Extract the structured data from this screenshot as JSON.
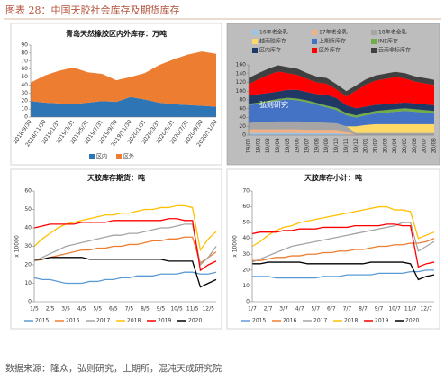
{
  "figure_title": "图表 28：中国天胶社会库存及期货库存",
  "source": "数据来源：隆众，弘则研究，上期所，混沌天成研究院",
  "chart_data": [
    {
      "type": "area",
      "title": "青岛天然橡胶区内外库存：万吨",
      "categories": [
        "2018/9/30",
        "2018/11/30",
        "2019/1/31",
        "2019/3/31",
        "2019/5/31",
        "2019/7/31",
        "2019/9/30",
        "2019/11/30",
        "2020/1/31",
        "2020/3/31",
        "2020/5/31",
        "2020/7/31",
        "2020/9/30",
        "2020/11/30"
      ],
      "series": [
        {
          "name": "区内",
          "color": "#2e75b6",
          "values": [
            20,
            18,
            17,
            16,
            18,
            20,
            19,
            25,
            22,
            18,
            16,
            15,
            14,
            13
          ]
        },
        {
          "name": "区外",
          "color": "#ed7d31",
          "values": [
            23,
            34,
            41,
            46,
            38,
            34,
            27,
            25,
            33,
            47,
            56,
            63,
            68,
            66
          ]
        }
      ],
      "ylim": [
        0,
        90
      ],
      "yticks": [
        0,
        10,
        20,
        30,
        40,
        50,
        60,
        70,
        80,
        90
      ],
      "grid": false,
      "legend": "bottom"
    },
    {
      "type": "area",
      "annotation": "弘则研究",
      "categories": [
        "19/01",
        "19/02",
        "19/03",
        "19/04",
        "19/05",
        "19/06",
        "19/07",
        "19/08",
        "19/09",
        "19/10",
        "19/11",
        "19/12",
        "20/01",
        "20/02",
        "20/03",
        "20/04",
        "20/05",
        "20/06",
        "20/07",
        "20/08"
      ],
      "series": [
        {
          "name": "16年老全乳",
          "color": "#9dc3e6",
          "values": [
            5,
            5,
            5,
            5,
            5,
            5,
            4,
            4,
            4,
            4,
            2,
            0,
            0,
            0,
            0,
            0,
            0,
            0,
            0,
            0
          ]
        },
        {
          "name": "17年老全乳",
          "color": "#f4b183",
          "values": [
            8,
            8,
            8,
            8,
            8,
            8,
            8,
            8,
            8,
            8,
            6,
            0,
            0,
            0,
            0,
            0,
            0,
            0,
            0,
            0
          ]
        },
        {
          "name": "18年老全乳",
          "color": "#a5a5a5",
          "values": [
            15,
            16,
            17,
            18,
            18,
            18,
            18,
            17,
            16,
            15,
            12,
            5,
            5,
            5,
            5,
            5,
            5,
            5,
            5,
            5
          ]
        },
        {
          "name": "越南胶库存",
          "color": "#ffd966",
          "values": [
            0,
            0,
            0,
            0,
            0,
            0,
            0,
            0,
            0,
            0,
            0,
            15,
            18,
            20,
            20,
            20,
            20,
            20,
            20,
            20
          ]
        },
        {
          "name": "上期所库存",
          "color": "#4472c4",
          "values": [
            40,
            42,
            45,
            48,
            50,
            48,
            45,
            40,
            35,
            30,
            25,
            20,
            22,
            24,
            26,
            28,
            30,
            28,
            26,
            24
          ]
        },
        {
          "name": "INE库存",
          "color": "#70ad47",
          "values": [
            3,
            3,
            3,
            3,
            4,
            4,
            4,
            4,
            4,
            5,
            5,
            5,
            5,
            6,
            6,
            6,
            6,
            6,
            6,
            6
          ]
        },
        {
          "name": "区内库存",
          "color": "#203864",
          "values": [
            20,
            19,
            18,
            17,
            18,
            20,
            19,
            20,
            25,
            22,
            18,
            16,
            15,
            14,
            13,
            13,
            13,
            13,
            13,
            13
          ]
        },
        {
          "name": "区外库存",
          "color": "#ff0000",
          "values": [
            25,
            34,
            41,
            46,
            38,
            34,
            30,
            27,
            25,
            20,
            20,
            40,
            50,
            55,
            58,
            60,
            55,
            50,
            48,
            46
          ]
        },
        {
          "name": "云南非标库存",
          "color": "#404040",
          "values": [
            14,
            14,
            14,
            14,
            14,
            14,
            13,
            13,
            13,
            12,
            12,
            12,
            12,
            12,
            12,
            12,
            12,
            12,
            12,
            12
          ]
        }
      ],
      "ylim": [
        0,
        160
      ],
      "yticks": [
        0,
        20,
        40,
        60,
        80,
        100,
        120,
        140,
        160
      ],
      "grid": false,
      "legend": "top"
    },
    {
      "type": "line",
      "title": "天胶库存期货：吨",
      "y_label": "x 10000",
      "categories": [
        "1/5",
        null,
        "2/5",
        null,
        "3/5",
        null,
        "4/5",
        null,
        "5/5",
        null,
        "6/5",
        null,
        "7/5",
        null,
        "8/5",
        null,
        "9/5",
        null,
        "10/5",
        null,
        "11/5",
        null,
        "12/5",
        null
      ],
      "series": [
        {
          "name": "2015",
          "color": "#5b9bd5",
          "values": [
            13,
            12,
            12,
            11,
            10,
            10,
            10,
            11,
            11,
            12,
            12,
            13,
            13,
            14,
            14,
            14,
            15,
            15,
            15,
            16,
            16,
            15,
            15,
            16
          ]
        },
        {
          "name": "2016",
          "color": "#ed7d31",
          "values": [
            22,
            23,
            24,
            25,
            26,
            27,
            28,
            28,
            29,
            29,
            30,
            30,
            31,
            31,
            32,
            33,
            33,
            34,
            34,
            35,
            35,
            21,
            24,
            27
          ]
        },
        {
          "name": "2017",
          "color": "#a5a5a5",
          "values": [
            22,
            24,
            26,
            28,
            30,
            31,
            32,
            33,
            34,
            35,
            36,
            36,
            37,
            37,
            38,
            39,
            40,
            40,
            41,
            42,
            42,
            20,
            24,
            30
          ]
        },
        {
          "name": "2018",
          "color": "#ffc000",
          "values": [
            30,
            34,
            37,
            40,
            42,
            43,
            44,
            45,
            46,
            47,
            47,
            48,
            48,
            49,
            50,
            50,
            51,
            51,
            52,
            52,
            51,
            28,
            34,
            38
          ]
        },
        {
          "name": "2019",
          "color": "#ff0000",
          "values": [
            40,
            41,
            42,
            42,
            42,
            42,
            43,
            43,
            43,
            43,
            44,
            44,
            44,
            44,
            44,
            44,
            44,
            45,
            45,
            44,
            44,
            17,
            20,
            22
          ]
        },
        {
          "name": "2020",
          "color": "#000000",
          "values": [
            23,
            23,
            24,
            24,
            24,
            24,
            24,
            23,
            23,
            23,
            23,
            23,
            23,
            23,
            23,
            23,
            23,
            22,
            22,
            22,
            22,
            8,
            10,
            12
          ]
        }
      ],
      "ylim": [
        0,
        60
      ],
      "yticks": [
        0,
        10,
        20,
        30,
        40,
        50,
        60
      ],
      "grid": false,
      "legend": "bottom"
    },
    {
      "type": "line",
      "title": "天胶库存小计：吨",
      "y_label": "x 10000",
      "categories": [
        "1/7",
        null,
        "2/7",
        null,
        "3/7",
        null,
        "4/7",
        null,
        "5/7",
        null,
        "6/7",
        null,
        "7/7",
        null,
        "8/7",
        null,
        "9/7",
        null,
        "10/7",
        null,
        "11/7",
        null,
        "12/7",
        null
      ],
      "series": [
        {
          "name": "2015",
          "color": "#5b9bd5",
          "values": [
            16,
            16,
            16,
            15,
            15,
            15,
            15,
            15,
            15,
            16,
            16,
            16,
            17,
            17,
            17,
            17,
            18,
            18,
            18,
            18,
            19,
            19,
            20,
            20
          ]
        },
        {
          "name": "2016",
          "color": "#ed7d31",
          "values": [
            26,
            26,
            27,
            28,
            28,
            29,
            29,
            30,
            30,
            31,
            31,
            32,
            32,
            33,
            33,
            34,
            35,
            35,
            36,
            36,
            37,
            37,
            38,
            40
          ]
        },
        {
          "name": "2017",
          "color": "#a5a5a5",
          "values": [
            25,
            27,
            29,
            31,
            33,
            35,
            36,
            37,
            38,
            39,
            40,
            41,
            42,
            43,
            44,
            45,
            46,
            47,
            48,
            50,
            50,
            32,
            35,
            38
          ]
        },
        {
          "name": "2018",
          "color": "#ffc000",
          "values": [
            35,
            38,
            42,
            45,
            47,
            48,
            50,
            51,
            52,
            53,
            54,
            55,
            56,
            57,
            58,
            59,
            60,
            60,
            58,
            58,
            57,
            40,
            42,
            44
          ]
        },
        {
          "name": "2019",
          "color": "#ff0000",
          "values": [
            43,
            44,
            44,
            44,
            45,
            45,
            46,
            46,
            46,
            47,
            47,
            47,
            47,
            48,
            48,
            48,
            48,
            49,
            49,
            48,
            48,
            22,
            24,
            25
          ]
        },
        {
          "name": "2020",
          "color": "#000000",
          "values": [
            24,
            24,
            25,
            25,
            25,
            25,
            25,
            24,
            24,
            24,
            24,
            24,
            24,
            24,
            24,
            25,
            25,
            25,
            25,
            25,
            24,
            14,
            16,
            17
          ]
        }
      ],
      "ylim": [
        0,
        70
      ],
      "yticks": [
        0,
        10,
        20,
        30,
        40,
        50,
        60,
        70
      ],
      "grid": false,
      "legend": "bottom"
    }
  ]
}
